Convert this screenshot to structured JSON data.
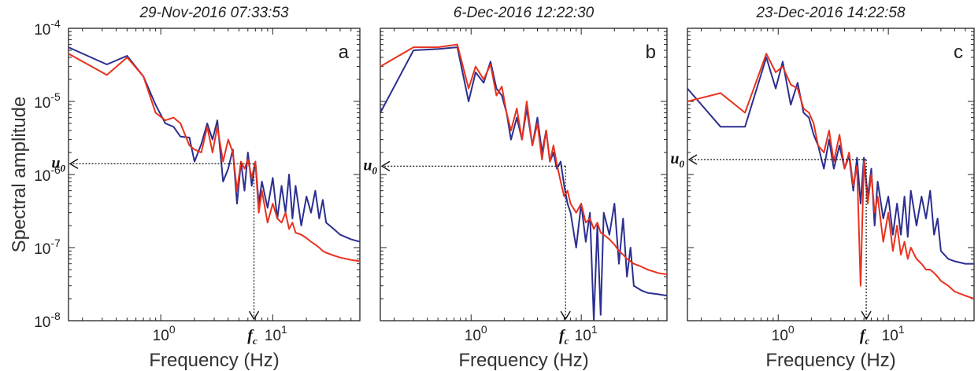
{
  "figure": {
    "ylabel": "Spectral amplitude",
    "y_ticks": [
      {
        "label": "10",
        "exp": "-4",
        "value": 0.0001
      },
      {
        "label": "10",
        "exp": "-5",
        "value": 1e-05
      },
      {
        "label": "10",
        "exp": "-6",
        "value": 1e-06
      },
      {
        "label": "10",
        "exp": "-7",
        "value": 1e-07
      },
      {
        "label": "10",
        "exp": "-8",
        "value": 1e-08
      }
    ],
    "colors": {
      "blue": "#2b2f8f",
      "red": "#e8321e",
      "axis": "#222222"
    }
  },
  "chart_data": [
    {
      "type": "line",
      "title": "29-Nov-2016 07:33:53",
      "panel_label": "a",
      "xlabel": "Frequency (Hz)",
      "ylabel": "Spectral amplitude",
      "x_scale": "log",
      "y_scale": "log",
      "xlim": [
        0.15,
        60
      ],
      "ylim": [
        1e-08,
        0.0001
      ],
      "x_ticks": [
        {
          "label": "10",
          "exp": "0",
          "value": 1
        },
        {
          "label": "10",
          "exp": "1",
          "value": 10
        }
      ],
      "u0": {
        "label": "u",
        "sub": "0",
        "value": 1.4e-06
      },
      "fc": {
        "label": "f",
        "sub": "c",
        "value": 6.8
      },
      "series": [
        {
          "color": "#2b2f8f",
          "x": [
            0.15,
            0.33,
            0.5,
            0.7,
            0.9,
            1.1,
            1.3,
            1.5,
            1.8,
            2.0,
            2.3,
            2.6,
            2.9,
            3.2,
            3.6,
            4.0,
            4.4,
            4.8,
            5.2,
            5.6,
            6.0,
            6.5,
            7.0,
            7.5,
            8,
            9,
            10,
            11,
            12,
            13,
            14,
            15,
            16,
            18,
            20,
            22,
            24,
            26,
            28,
            30,
            35,
            40,
            50,
            60
          ],
          "y": [
            5.5e-05,
            3.2e-05,
            4.2e-05,
            2.2e-05,
            9e-06,
            5e-06,
            4.5e-06,
            3.3e-06,
            3.2e-06,
            1.5e-06,
            2.6e-06,
            5e-06,
            3e-06,
            5.5e-06,
            8e-07,
            1.2e-06,
            2.2e-06,
            4e-07,
            1.5e-06,
            6e-07,
            2e-06,
            7e-07,
            1.5e-06,
            4e-07,
            8e-07,
            3.5e-07,
            9e-07,
            2.5e-07,
            7e-07,
            3e-07,
            1e-06,
            2.5e-07,
            7e-07,
            2e-07,
            5e-07,
            3e-07,
            6e-07,
            2.5e-07,
            4.5e-07,
            2.2e-07,
            1.8e-07,
            1.5e-07,
            1.3e-07,
            1.2e-07
          ]
        },
        {
          "color": "#e8321e",
          "x": [
            0.15,
            0.33,
            0.5,
            0.7,
            0.9,
            1.1,
            1.3,
            1.5,
            1.8,
            2.0,
            2.3,
            2.6,
            2.9,
            3.2,
            3.6,
            4.0,
            4.4,
            4.8,
            5.2,
            5.6,
            6.0,
            6.5,
            7.0,
            7.5,
            8,
            9,
            10,
            11,
            12,
            13,
            14,
            15,
            16,
            18,
            20,
            22,
            24,
            26,
            28,
            30,
            35,
            40,
            50,
            60
          ],
          "y": [
            4.5e-05,
            2.3e-05,
            4e-05,
            2.2e-05,
            7e-06,
            5.5e-06,
            6e-06,
            5e-06,
            2.5e-06,
            2.2e-06,
            2e-06,
            4.5e-06,
            2e-06,
            4.5e-06,
            1.5e-06,
            3e-06,
            2e-06,
            6e-07,
            1.5e-06,
            1.2e-06,
            1.6e-06,
            9e-07,
            1.5e-06,
            3e-07,
            6e-07,
            2.2e-07,
            4e-07,
            2.5e-07,
            2.2e-07,
            3e-07,
            1.8e-07,
            2.2e-07,
            1.6e-07,
            1.5e-07,
            1.35e-07,
            1.2e-07,
            1.1e-07,
            1e-07,
            9e-08,
            8.5e-08,
            7.8e-08,
            7.3e-08,
            6.8e-08,
            6.5e-08
          ]
        }
      ]
    },
    {
      "type": "line",
      "title": "6-Dec-2016 12:22:30",
      "panel_label": "b",
      "xlabel": "Frequency (Hz)",
      "ylabel": "",
      "x_scale": "log",
      "y_scale": "log",
      "xlim": [
        0.15,
        60
      ],
      "ylim": [
        1e-08,
        0.0001
      ],
      "x_ticks": [
        {
          "label": "10",
          "exp": "0",
          "value": 1
        },
        {
          "label": "10",
          "exp": "1",
          "value": 10
        }
      ],
      "u0": {
        "label": "u",
        "sub": "0",
        "value": 1.3e-06
      },
      "fc": {
        "label": "f",
        "sub": "c",
        "value": 7.2
      },
      "series": [
        {
          "color": "#2b2f8f",
          "x": [
            0.15,
            0.3,
            0.5,
            0.75,
            0.95,
            1.1,
            1.3,
            1.5,
            1.7,
            1.9,
            2.1,
            2.3,
            2.6,
            2.9,
            3.2,
            3.6,
            4.0,
            4.4,
            4.8,
            5.2,
            5.6,
            6.0,
            6.5,
            7.0,
            7.5,
            8,
            9,
            10,
            11,
            12,
            13,
            14,
            15,
            16,
            18,
            20,
            22,
            24,
            26,
            28,
            30,
            35,
            40,
            50,
            60
          ],
          "y": [
            7e-06,
            5e-05,
            5.2e-05,
            5.5e-05,
            1e-05,
            2.5e-05,
            1.8e-05,
            3.5e-05,
            1.5e-05,
            1.2e-05,
            7e-06,
            3e-06,
            6e-06,
            3e-06,
            8e-06,
            2.5e-06,
            6e-06,
            2e-06,
            4e-06,
            1.5e-06,
            2e-06,
            1.2e-06,
            1.5e-06,
            7e-07,
            4e-07,
            3e-07,
            1e-07,
            4e-07,
            1.2e-07,
            3e-07,
            1e-08,
            2e-07,
            1.2e-08,
            3e-07,
            1.5e-07,
            4e-07,
            6e-08,
            2.5e-07,
            4e-08,
            1e-07,
            3e-08,
            2.6e-08,
            2.4e-08,
            2.3e-08,
            2.2e-08
          ]
        },
        {
          "color": "#e8321e",
          "x": [
            0.15,
            0.3,
            0.5,
            0.75,
            0.95,
            1.1,
            1.3,
            1.5,
            1.7,
            1.9,
            2.1,
            2.3,
            2.6,
            2.9,
            3.2,
            3.6,
            4.0,
            4.4,
            4.8,
            5.2,
            5.6,
            6.0,
            6.5,
            7.0,
            7.5,
            8,
            9,
            10,
            11,
            12,
            13,
            14,
            15,
            16,
            18,
            20,
            22,
            24,
            26,
            28,
            30,
            35,
            40,
            50,
            60
          ],
          "y": [
            3e-05,
            5.5e-05,
            5.5e-05,
            6e-05,
            1.5e-05,
            3e-05,
            2e-05,
            3.2e-05,
            1.2e-05,
            1.6e-05,
            7e-06,
            4e-06,
            8e-06,
            3e-06,
            1e-05,
            2.5e-06,
            5e-06,
            1.6e-06,
            4e-06,
            1.5e-06,
            2.5e-06,
            1.4e-06,
            8e-07,
            5e-07,
            6e-07,
            4e-07,
            3e-07,
            4e-07,
            2.2e-07,
            2.5e-07,
            1.8e-07,
            2.2e-07,
            1.6e-07,
            1.5e-07,
            1.3e-07,
            1.1e-07,
            9e-08,
            8e-08,
            7e-08,
            6.5e-08,
            6e-08,
            5.5e-08,
            5e-08,
            4.5e-08,
            4.3e-08
          ]
        }
      ]
    },
    {
      "type": "line",
      "title": "23-Dec-2016 14:22:58",
      "panel_label": "c",
      "xlabel": "Frequency (Hz)",
      "ylabel": "",
      "x_scale": "log",
      "y_scale": "log",
      "xlim": [
        0.15,
        60
      ],
      "ylim": [
        1e-08,
        0.0001
      ],
      "x_ticks": [
        {
          "label": "10",
          "exp": "0",
          "value": 1
        },
        {
          "label": "10",
          "exp": "1",
          "value": 10
        }
      ],
      "u0": {
        "label": "u",
        "sub": "0",
        "value": 1.6e-06
      },
      "fc": {
        "label": "f",
        "sub": "c",
        "value": 6.3
      },
      "series": [
        {
          "color": "#2b2f8f",
          "x": [
            0.15,
            0.3,
            0.5,
            0.78,
            0.95,
            1.1,
            1.3,
            1.5,
            1.7,
            1.9,
            2.1,
            2.3,
            2.6,
            2.9,
            3.2,
            3.6,
            4.0,
            4.4,
            4.8,
            5.2,
            5.6,
            6.0,
            6.5,
            7.0,
            7.5,
            8,
            9,
            10,
            11,
            12,
            13,
            14,
            15,
            16,
            18,
            20,
            22,
            24,
            26,
            28,
            30,
            35,
            40,
            50,
            60
          ],
          "y": [
            1.5e-05,
            4.5e-06,
            4.5e-06,
            4e-05,
            1.5e-05,
            3.5e-05,
            9e-06,
            1.8e-05,
            7e-06,
            6e-06,
            3.5e-06,
            2.5e-06,
            1.2e-06,
            3e-06,
            1.2e-06,
            2.5e-06,
            1.2e-06,
            1.8e-06,
            6e-07,
            1.7e-06,
            4e-07,
            1.7e-06,
            5e-07,
            1.2e-06,
            2e-07,
            8e-07,
            2.5e-07,
            5e-07,
            1.5e-07,
            4e-07,
            1.5e-07,
            5e-07,
            1.4e-07,
            6e-07,
            2e-07,
            5e-07,
            2.5e-07,
            6e-07,
            1.5e-07,
            2.5e-07,
            9e-08,
            7e-08,
            6.5e-08,
            6e-08,
            6e-08
          ]
        },
        {
          "color": "#e8321e",
          "x": [
            0.15,
            0.3,
            0.5,
            0.78,
            0.95,
            1.1,
            1.3,
            1.5,
            1.7,
            1.9,
            2.1,
            2.3,
            2.6,
            2.9,
            3.2,
            3.6,
            4.0,
            4.4,
            4.8,
            5.2,
            5.6,
            6.0,
            6.5,
            7.0,
            7.5,
            8,
            9,
            10,
            11,
            12,
            13,
            14,
            15,
            16,
            18,
            20,
            22,
            24,
            26,
            28,
            30,
            35,
            40,
            50,
            60
          ],
          "y": [
            1e-05,
            1.3e-05,
            7e-06,
            4.5e-05,
            2.5e-05,
            3e-05,
            1.7e-05,
            1.5e-05,
            8e-06,
            7e-06,
            5e-06,
            2.5e-06,
            2e-06,
            4e-06,
            1.5e-06,
            3.5e-06,
            1.2e-06,
            2e-06,
            7e-07,
            1.3e-06,
            3e-08,
            1.5e-06,
            4e-07,
            1e-06,
            3e-07,
            5e-07,
            1.2e-07,
            3e-07,
            9e-08,
            2e-07,
            8e-08,
            1.2e-07,
            7e-08,
            1e-07,
            7e-08,
            6e-08,
            5e-08,
            5e-08,
            4.5e-08,
            4e-08,
            3.5e-08,
            3e-08,
            2.5e-08,
            2.2e-08,
            2e-08
          ]
        }
      ]
    }
  ]
}
